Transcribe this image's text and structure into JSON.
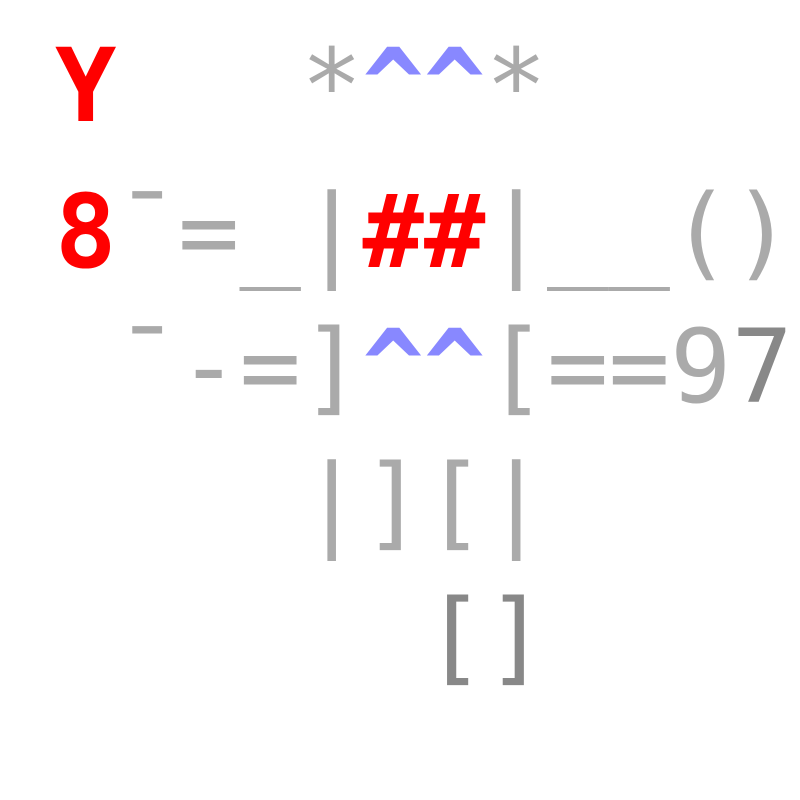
{
  "rows": [
    {
      "glyphs": [
        {
          "ch": "Y",
          "tone": "red"
        },
        {
          "ch": " ",
          "tone": "light"
        },
        {
          "ch": " ",
          "tone": "light"
        },
        {
          "ch": " ",
          "tone": "light"
        },
        {
          "ch": "*",
          "tone": "light"
        },
        {
          "ch": "^",
          "tone": "blue"
        },
        {
          "ch": "^",
          "tone": "blue"
        },
        {
          "ch": "*",
          "tone": "light"
        }
      ]
    },
    {
      "glyphs": [
        {
          "ch": "8",
          "tone": "red"
        },
        {
          "ch": "¯",
          "tone": "light"
        },
        {
          "ch": "=",
          "tone": "light"
        },
        {
          "ch": "_",
          "tone": "light"
        },
        {
          "ch": "|",
          "tone": "light"
        },
        {
          "ch": "#",
          "tone": "red"
        },
        {
          "ch": "#",
          "tone": "red"
        },
        {
          "ch": "|",
          "tone": "light"
        },
        {
          "ch": "_",
          "tone": "light"
        },
        {
          "ch": "_",
          "tone": "light"
        },
        {
          "ch": "(",
          "tone": "light"
        },
        {
          "ch": ")",
          "tone": "light"
        }
      ]
    },
    {
      "glyphs": [
        {
          "ch": " ",
          "tone": "light"
        },
        {
          "ch": "¯",
          "tone": "light"
        },
        {
          "ch": "-",
          "tone": "light"
        },
        {
          "ch": "=",
          "tone": "light"
        },
        {
          "ch": "]",
          "tone": "light"
        },
        {
          "ch": "^",
          "tone": "blue"
        },
        {
          "ch": "^",
          "tone": "blue"
        },
        {
          "ch": "[",
          "tone": "light"
        },
        {
          "ch": "=",
          "tone": "light"
        },
        {
          "ch": "=",
          "tone": "light"
        },
        {
          "ch": "9",
          "tone": "light"
        },
        {
          "ch": "7",
          "tone": "dark"
        }
      ]
    },
    {
      "glyphs": [
        {
          "ch": " ",
          "tone": "light"
        },
        {
          "ch": " ",
          "tone": "light"
        },
        {
          "ch": " ",
          "tone": "light"
        },
        {
          "ch": " ",
          "tone": "light"
        },
        {
          "ch": "|",
          "tone": "light"
        },
        {
          "ch": "]",
          "tone": "light"
        },
        {
          "ch": "[",
          "tone": "light"
        },
        {
          "ch": "|",
          "tone": "light"
        }
      ]
    },
    {
      "glyphs": [
        {
          "ch": " ",
          "tone": "light"
        },
        {
          "ch": " ",
          "tone": "light"
        },
        {
          "ch": " ",
          "tone": "light"
        },
        {
          "ch": " ",
          "tone": "light"
        },
        {
          "ch": " ",
          "tone": "light"
        },
        {
          "ch": " ",
          "tone": "light"
        },
        {
          "ch": "[",
          "tone": "dark"
        },
        {
          "ch": "]",
          "tone": "dark"
        }
      ]
    }
  ],
  "colors": {
    "red": "#ff0000",
    "light": "#aaaaaa",
    "dark": "#888888",
    "blue": "#8888ff"
  }
}
